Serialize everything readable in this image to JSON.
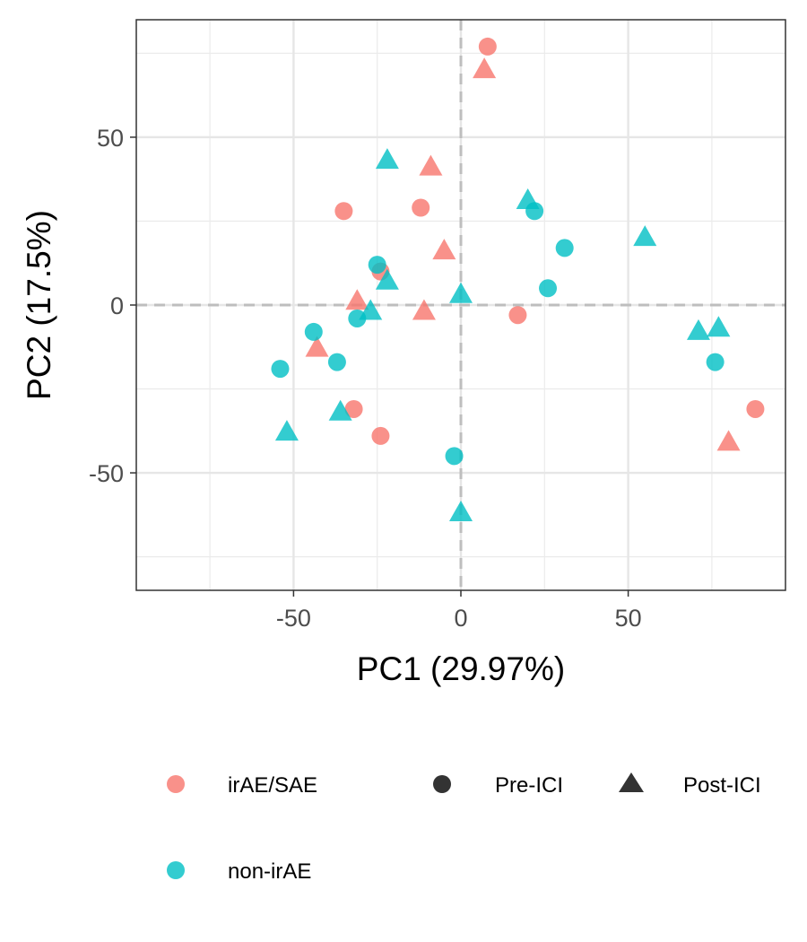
{
  "chart_data": {
    "type": "scatter",
    "xlabel": "PC1 (29.97%)",
    "ylabel": "PC2 (17.5%)",
    "xlim": [
      -97,
      97
    ],
    "ylim": [
      -85,
      85
    ],
    "x_ticks": [
      -50,
      0,
      50
    ],
    "y_ticks": [
      -50,
      0,
      50
    ],
    "x_tick_labels": [
      "-50",
      "0",
      "50"
    ],
    "y_tick_labels": [
      "-50",
      "0",
      "50"
    ],
    "grid": true,
    "reference_lines": {
      "x": 0,
      "y": 0,
      "style": "dashed"
    },
    "legend_position": "bottom",
    "color_legend": [
      {
        "label": "irAE/SAE",
        "color": "#F8766D"
      },
      {
        "label": "non-irAE",
        "color": "#00BFC4"
      }
    ],
    "shape_legend": [
      {
        "label": "Pre-ICI",
        "shape": "circle"
      },
      {
        "label": "Post-ICI",
        "shape": "triangle"
      }
    ],
    "points": [
      {
        "x": 8,
        "y": 77,
        "group": "irAE/SAE",
        "time": "Pre-ICI"
      },
      {
        "x": 7,
        "y": 70,
        "group": "irAE/SAE",
        "time": "Post-ICI"
      },
      {
        "x": -9,
        "y": 41,
        "group": "irAE/SAE",
        "time": "Post-ICI"
      },
      {
        "x": -35,
        "y": 28,
        "group": "irAE/SAE",
        "time": "Pre-ICI"
      },
      {
        "x": -12,
        "y": 29,
        "group": "irAE/SAE",
        "time": "Pre-ICI"
      },
      {
        "x": -5,
        "y": 16,
        "group": "irAE/SAE",
        "time": "Post-ICI"
      },
      {
        "x": -24,
        "y": 10,
        "group": "irAE/SAE",
        "time": "Pre-ICI"
      },
      {
        "x": -31,
        "y": 1,
        "group": "irAE/SAE",
        "time": "Post-ICI"
      },
      {
        "x": -11,
        "y": -2,
        "group": "irAE/SAE",
        "time": "Post-ICI"
      },
      {
        "x": 17,
        "y": -3,
        "group": "irAE/SAE",
        "time": "Pre-ICI"
      },
      {
        "x": -43,
        "y": -13,
        "group": "irAE/SAE",
        "time": "Post-ICI"
      },
      {
        "x": -32,
        "y": -31,
        "group": "irAE/SAE",
        "time": "Pre-ICI"
      },
      {
        "x": -24,
        "y": -39,
        "group": "irAE/SAE",
        "time": "Pre-ICI"
      },
      {
        "x": 88,
        "y": -31,
        "group": "irAE/SAE",
        "time": "Pre-ICI"
      },
      {
        "x": 80,
        "y": -41,
        "group": "irAE/SAE",
        "time": "Post-ICI"
      },
      {
        "x": -22,
        "y": 43,
        "group": "non-irAE",
        "time": "Post-ICI"
      },
      {
        "x": 20,
        "y": 31,
        "group": "non-irAE",
        "time": "Post-ICI"
      },
      {
        "x": 22,
        "y": 28,
        "group": "non-irAE",
        "time": "Pre-ICI"
      },
      {
        "x": 31,
        "y": 17,
        "group": "non-irAE",
        "time": "Pre-ICI"
      },
      {
        "x": 55,
        "y": 20,
        "group": "non-irAE",
        "time": "Post-ICI"
      },
      {
        "x": -25,
        "y": 12,
        "group": "non-irAE",
        "time": "Pre-ICI"
      },
      {
        "x": -22,
        "y": 7,
        "group": "non-irAE",
        "time": "Post-ICI"
      },
      {
        "x": 26,
        "y": 5,
        "group": "non-irAE",
        "time": "Pre-ICI"
      },
      {
        "x": 0,
        "y": 3,
        "group": "non-irAE",
        "time": "Post-ICI"
      },
      {
        "x": -27,
        "y": -2,
        "group": "non-irAE",
        "time": "Post-ICI"
      },
      {
        "x": -31,
        "y": -4,
        "group": "non-irAE",
        "time": "Pre-ICI"
      },
      {
        "x": -44,
        "y": -8,
        "group": "non-irAE",
        "time": "Pre-ICI"
      },
      {
        "x": -37,
        "y": -17,
        "group": "non-irAE",
        "time": "Pre-ICI"
      },
      {
        "x": -54,
        "y": -19,
        "group": "non-irAE",
        "time": "Pre-ICI"
      },
      {
        "x": 71,
        "y": -8,
        "group": "non-irAE",
        "time": "Post-ICI"
      },
      {
        "x": 77,
        "y": -7,
        "group": "non-irAE",
        "time": "Post-ICI"
      },
      {
        "x": 76,
        "y": -17,
        "group": "non-irAE",
        "time": "Pre-ICI"
      },
      {
        "x": -36,
        "y": -32,
        "group": "non-irAE",
        "time": "Post-ICI"
      },
      {
        "x": -52,
        "y": -38,
        "group": "non-irAE",
        "time": "Post-ICI"
      },
      {
        "x": -2,
        "y": -45,
        "group": "non-irAE",
        "time": "Pre-ICI"
      },
      {
        "x": 0,
        "y": -62,
        "group": "non-irAE",
        "time": "Post-ICI"
      }
    ]
  }
}
